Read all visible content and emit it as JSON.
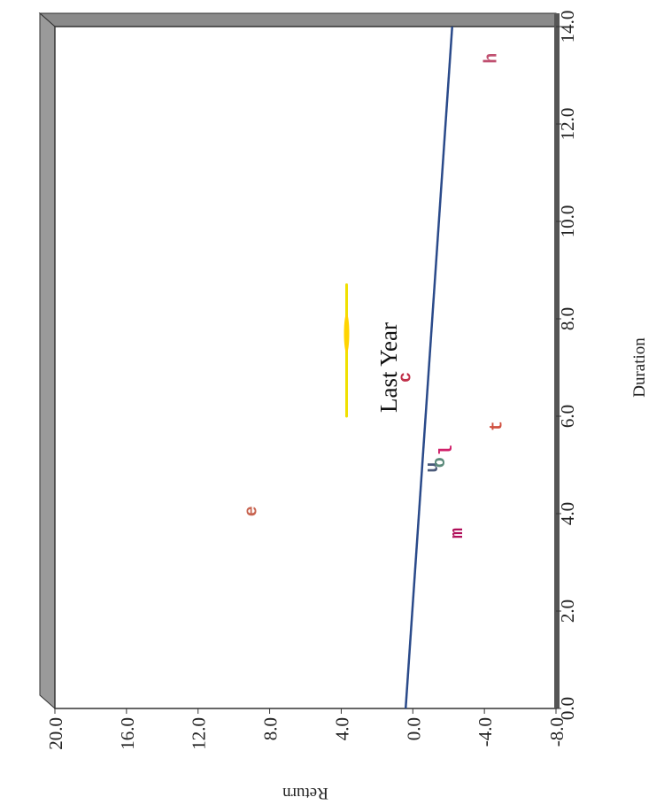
{
  "chart_data": {
    "type": "scatter",
    "title": "Last Year",
    "xlabel": "Duration",
    "ylabel": "Return",
    "xlim": [
      0,
      14
    ],
    "ylim": [
      -8,
      20
    ],
    "x_ticks": [
      "0.0",
      "2.0",
      "4.0",
      "6.0",
      "8.0",
      "10.0",
      "12.0",
      "14.0"
    ],
    "y_ticks": [
      "-8.0",
      "-4.0",
      "0.0",
      "4.0",
      "8.0",
      "12.0",
      "16.0",
      "20.0"
    ],
    "grid": false,
    "points": [
      {
        "label": "e",
        "x": 4.05,
        "y": 9.0,
        "color": "#c86450"
      },
      {
        "label": "c",
        "x": 6.8,
        "y": 0.4,
        "color": "#c0304a"
      },
      {
        "label": "u",
        "x": 4.95,
        "y": -1.1,
        "color": "#4a5a7a"
      },
      {
        "label": "o",
        "x": 5.05,
        "y": -1.5,
        "color": "#5a8a7a"
      },
      {
        "label": "l",
        "x": 5.3,
        "y": -1.9,
        "color": "#d0206a"
      },
      {
        "label": "m",
        "x": 3.6,
        "y": -2.5,
        "color": "#b0105a"
      },
      {
        "label": "t",
        "x": 5.8,
        "y": -4.7,
        "color": "#d05040"
      },
      {
        "label": "h",
        "x": 13.35,
        "y": -4.4,
        "color": "#c05070"
      }
    ],
    "trend_line": {
      "x": [
        0,
        14
      ],
      "y": [
        0.4,
        -2.2
      ],
      "color": "#2a4a8a"
    },
    "highlight": {
      "x": [
        6.0,
        8.7
      ],
      "y": 3.7,
      "color": "#f0e000"
    }
  }
}
